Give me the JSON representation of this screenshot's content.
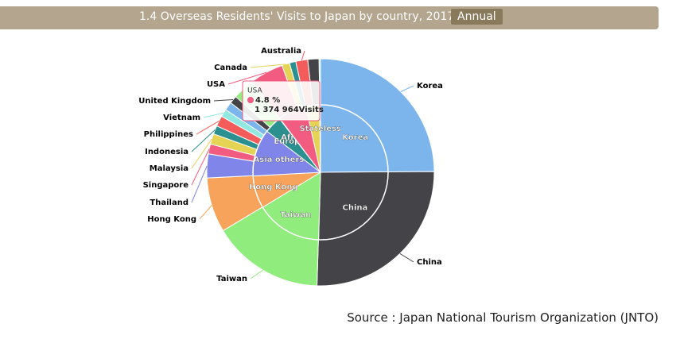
{
  "chart_data": {
    "type": "pie",
    "title": "1.4 Overseas Residents' Visits to Japan by country, 2017",
    "period_tag": "Annual",
    "source": "Source : Japan National Tourism Organization (JNTO)",
    "outer": {
      "categories": [
        "Korea",
        "China",
        "Taiwan",
        "Hong Kong",
        "Thailand",
        "Singapore",
        "Malaysia",
        "Indonesia",
        "Philippines",
        "Vietnam",
        null,
        "United Kingdom",
        null,
        "USA",
        "Canada",
        null,
        "Australia",
        null,
        null
      ],
      "values": [
        24.9,
        25.6,
        15.9,
        7.8,
        3.4,
        1.4,
        1.5,
        1.2,
        1.5,
        1.1,
        1.2,
        1.1,
        3.1,
        4.8,
        1.1,
        0.9,
        1.7,
        1.6,
        0.2
      ],
      "colors": [
        "#7cb5ec",
        "#434348",
        "#90ed7d",
        "#f7a35c",
        "#8085e9",
        "#f15c80",
        "#e4d354",
        "#2b908f",
        "#f45b5b",
        "#91e8e1",
        "#7cb5ec",
        "#434348",
        "#90ed7d",
        "#f15c80",
        "#e4d354",
        "#2b908f",
        "#f45b5b",
        "#434348",
        "#91e8e1"
      ]
    },
    "inner": {
      "categories": [
        "Korea",
        "China",
        "Taiwan",
        "Hong Kong",
        "Asia others",
        "Europe",
        "Africa",
        null,
        null,
        "Stateless"
      ],
      "values": [
        24.9,
        25.6,
        15.9,
        7.8,
        11.3,
        4.2,
        0.1,
        6.8,
        3.3,
        0.2
      ],
      "colors": [
        "#7cb5ec",
        "#434348",
        "#90ed7d",
        "#f7a35c",
        "#8085e9",
        "#2b908f",
        "#f15c80",
        "#f15c80",
        "#e4d354",
        "#91e8e1"
      ]
    },
    "tooltip": {
      "name": "USA",
      "percent_label": "4.8 %",
      "visits_label": "1 374 964Visits"
    }
  }
}
